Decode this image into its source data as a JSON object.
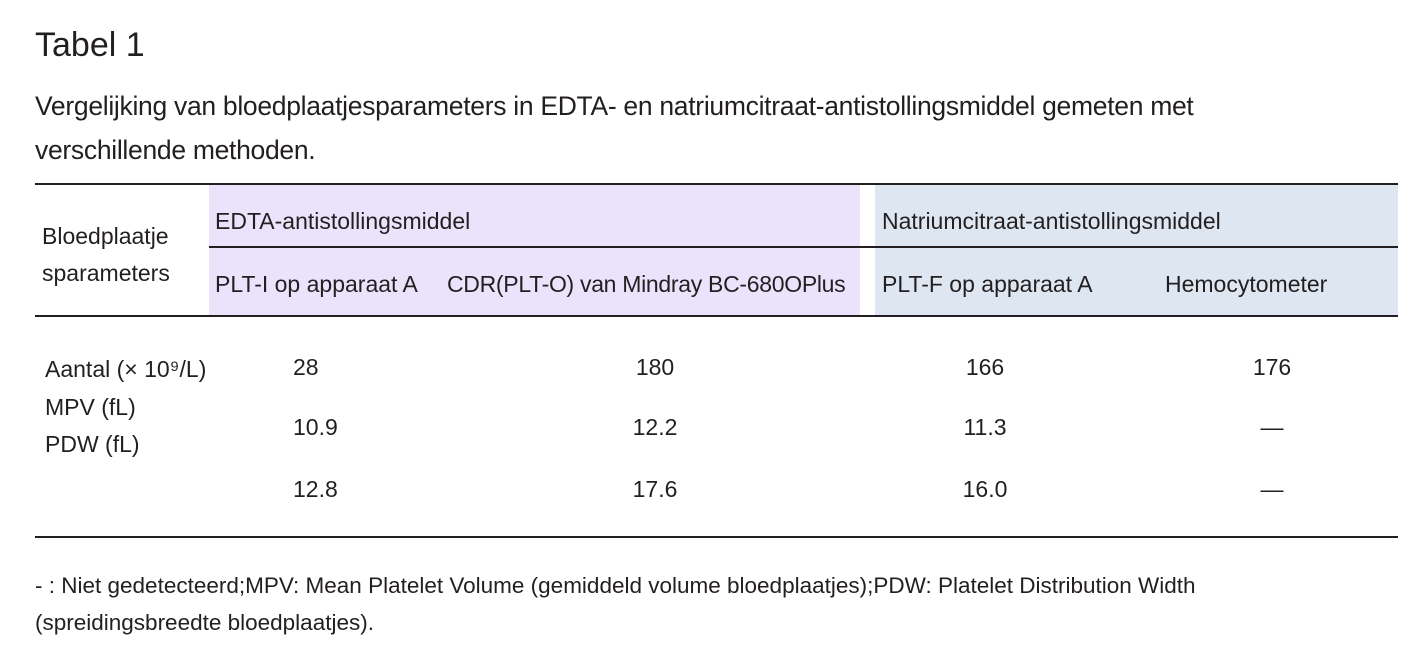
{
  "header": {
    "title": "Tabel 1",
    "caption": "Vergelijking van bloedplaatjesparameters in EDTA- en natriumcitraat-antistollingsmiddel gemeten met verschillende methoden."
  },
  "table": {
    "corner": "Bloedplaatje sparameters",
    "groups": [
      "EDTA-antistollingsmiddel",
      "Natriumcitraat-antistollingsmiddel"
    ],
    "columns": [
      "PLT-I op apparaat A",
      "CDR(PLT-O) van Mindray BC-680OPlus",
      "PLT-F op apparaat A",
      "Hemocytometer"
    ],
    "row_labels": [
      "Aantal (× 10⁹/L)",
      "MPV (fL)",
      "PDW (fL)"
    ],
    "rows": [
      [
        "28",
        "180",
        "166",
        "176"
      ],
      [
        "10.9",
        "12.2",
        "11.3",
        "—"
      ],
      [
        "12.8",
        "17.6",
        "16.0",
        "—"
      ]
    ]
  },
  "footnote": "- :  Niet gedetecteerd;MPV: Mean Platelet Volume (gemiddeld volume bloedplaatjes);PDW: Platelet Distribution Width (spreidingsbreedte bloedplaatjes)."
}
